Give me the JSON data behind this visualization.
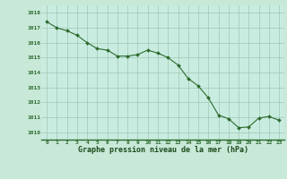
{
  "x": [
    0,
    1,
    2,
    3,
    4,
    5,
    6,
    7,
    8,
    9,
    10,
    11,
    12,
    13,
    14,
    15,
    16,
    17,
    18,
    19,
    20,
    21,
    22,
    23
  ],
  "y": [
    1017.4,
    1017.0,
    1016.8,
    1016.5,
    1016.0,
    1015.6,
    1015.5,
    1015.1,
    1015.1,
    1015.2,
    1015.5,
    1015.3,
    1015.0,
    1014.5,
    1013.6,
    1013.1,
    1012.3,
    1011.15,
    1010.9,
    1010.3,
    1010.35,
    1010.95,
    1011.05,
    1010.8
  ],
  "line_color": "#2d6a2d",
  "marker_color": "#2d6a2d",
  "bg_color": "#c8e8d8",
  "plot_bg_color": "#c8ece0",
  "grid_color": "#a0c8b4",
  "xlabel": "Graphe pression niveau de la mer (hPa)",
  "xlabel_color": "#1a4a1a",
  "tick_color": "#2d6a2d",
  "ylim": [
    1009.5,
    1018.5
  ],
  "xlim": [
    -0.5,
    23.5
  ],
  "yticks": [
    1010,
    1011,
    1012,
    1013,
    1014,
    1015,
    1016,
    1017,
    1018
  ],
  "xticks": [
    0,
    1,
    2,
    3,
    4,
    5,
    6,
    7,
    8,
    9,
    10,
    11,
    12,
    13,
    14,
    15,
    16,
    17,
    18,
    19,
    20,
    21,
    22,
    23
  ],
  "figsize": [
    3.2,
    2.0
  ],
  "dpi": 100
}
